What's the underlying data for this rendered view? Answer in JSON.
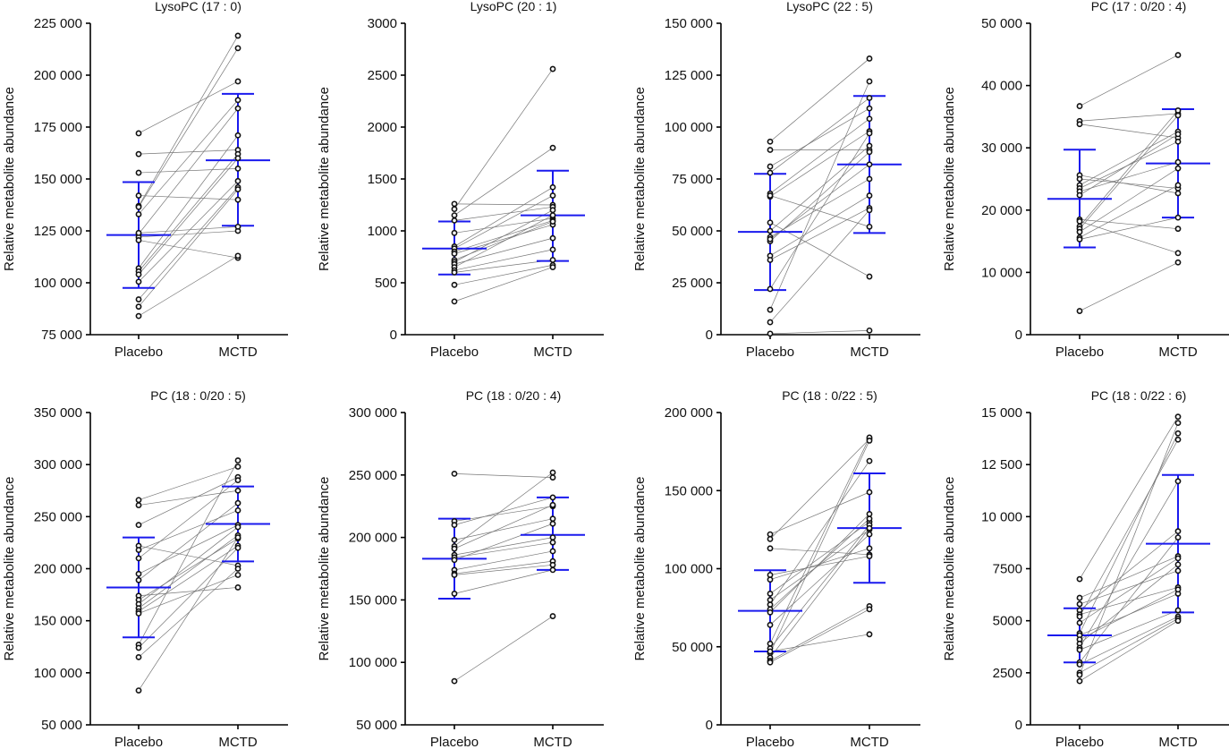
{
  "chart_data": [
    {
      "type": "scatter",
      "title": "LysoPC (17 : 0)",
      "xlabel": "",
      "ylabel": "Relative metabolite abundance",
      "categories": [
        "Placebo",
        "MCTD"
      ],
      "ylim": [
        75000,
        225000
      ],
      "yticks": [
        75000,
        100000,
        125000,
        150000,
        175000,
        200000,
        225000
      ],
      "ytick_labels": [
        "75 000",
        "100 000",
        "125 000",
        "150 000",
        "175 000",
        "200 000",
        "225 000"
      ],
      "pairs": [
        [
          172000,
          197000
        ],
        [
          162000,
          164000
        ],
        [
          153000,
          155000
        ],
        [
          142000,
          140000
        ],
        [
          137000,
          219000
        ],
        [
          136500,
          213000
        ],
        [
          133000,
          188000
        ],
        [
          123500,
          184000
        ],
        [
          122000,
          125000
        ],
        [
          120500,
          112000
        ],
        [
          107000,
          171000
        ],
        [
          105500,
          162000
        ],
        [
          104000,
          160000
        ],
        [
          100500,
          149000
        ],
        [
          92000,
          146000
        ],
        [
          88500,
          145000
        ],
        [
          84000,
          113000
        ],
        [
          124000,
          127000
        ]
      ],
      "summary": {
        "Placebo": {
          "mean": 123000,
          "upper": 148500,
          "lower": 97500
        },
        "MCTD": {
          "mean": 159000,
          "upper": 191000,
          "lower": 127500
        }
      }
    },
    {
      "type": "scatter",
      "title": "LysoPC (20 : 1)",
      "xlabel": "",
      "ylabel": "Relative metabolite abundance",
      "categories": [
        "Placebo",
        "MCTD"
      ],
      "ylim": [
        0,
        3000
      ],
      "yticks": [
        0,
        500,
        1000,
        1500,
        2000,
        2500,
        3000
      ],
      "ytick_labels": [
        "0",
        "500",
        "1000",
        "1500",
        "2000",
        "2500",
        "3000"
      ],
      "pairs": [
        [
          1260,
          1250
        ],
        [
          1210,
          2560
        ],
        [
          1150,
          1800
        ],
        [
          1100,
          1230
        ],
        [
          980,
          1120
        ],
        [
          850,
          1420
        ],
        [
          830,
          1340
        ],
        [
          800,
          1100
        ],
        [
          780,
          1060
        ],
        [
          720,
          1090
        ],
        [
          700,
          1200
        ],
        [
          680,
          930
        ],
        [
          650,
          1150
        ],
        [
          620,
          820
        ],
        [
          600,
          720
        ],
        [
          480,
          670
        ],
        [
          320,
          650
        ]
      ],
      "summary": {
        "Placebo": {
          "mean": 830,
          "upper": 1090,
          "lower": 580
        },
        "MCTD": {
          "mean": 1150,
          "upper": 1580,
          "lower": 710
        }
      }
    },
    {
      "type": "scatter",
      "title": "LysoPC (22 : 5)",
      "xlabel": "",
      "ylabel": "Relative metabolite abundance",
      "categories": [
        "Placebo",
        "MCTD"
      ],
      "ylim": [
        0,
        150000
      ],
      "yticks": [
        0,
        25000,
        50000,
        75000,
        100000,
        125000,
        150000
      ],
      "ytick_labels": [
        "0",
        "25 000",
        "50 000",
        "75 000",
        "100 000",
        "125 000",
        "150 000"
      ],
      "pairs": [
        [
          93000,
          133000
        ],
        [
          89000,
          89000
        ],
        [
          81000,
          109000
        ],
        [
          78000,
          114000
        ],
        [
          68000,
          104000
        ],
        [
          66500,
          98000
        ],
        [
          54000,
          28000
        ],
        [
          50000,
          91000
        ],
        [
          47000,
          75000
        ],
        [
          45000,
          88000
        ],
        [
          38000,
          67000
        ],
        [
          36000,
          61000
        ],
        [
          22000,
          97000
        ],
        [
          12000,
          122000
        ],
        [
          6000,
          60000
        ],
        [
          500,
          2000
        ],
        [
          67000,
          52000
        ],
        [
          46000,
          82000
        ]
      ],
      "summary": {
        "Placebo": {
          "mean": 49500,
          "upper": 77500,
          "lower": 21500
        },
        "MCTD": {
          "mean": 82000,
          "upper": 115000,
          "lower": 49000
        }
      }
    },
    {
      "type": "scatter",
      "title": "PC (17 : 0/20 : 4)",
      "xlabel": "",
      "ylabel": "Relative metabolite abundance",
      "categories": [
        "Placebo",
        "MCTD"
      ],
      "ylim": [
        0,
        50000
      ],
      "yticks": [
        0,
        10000,
        20000,
        30000,
        40000,
        50000
      ],
      "ytick_labels": [
        "0",
        "10 000",
        "20 000",
        "30 000",
        "40 000",
        "50 000"
      ],
      "pairs": [
        [
          36700,
          44900
        ],
        [
          34300,
          35500
        ],
        [
          33800,
          31600
        ],
        [
          25600,
          22700
        ],
        [
          25000,
          23500
        ],
        [
          24000,
          32600
        ],
        [
          23500,
          31000
        ],
        [
          23000,
          27700
        ],
        [
          22400,
          32200
        ],
        [
          18500,
          17000
        ],
        [
          18200,
          13100
        ],
        [
          17400,
          36000
        ],
        [
          17000,
          35200
        ],
        [
          16500,
          26700
        ],
        [
          15600,
          24000
        ],
        [
          15300,
          18800
        ],
        [
          3800,
          11600
        ]
      ],
      "summary": {
        "Placebo": {
          "mean": 21800,
          "upper": 29700,
          "lower": 14000
        },
        "MCTD": {
          "mean": 27500,
          "upper": 36200,
          "lower": 18800
        }
      }
    },
    {
      "type": "scatter",
      "title": "PC (18 : 0/20 : 5)",
      "xlabel": "",
      "ylabel": "Relative metabolite abundance",
      "categories": [
        "Placebo",
        "MCTD"
      ],
      "ylim": [
        50000,
        350000
      ],
      "yticks": [
        50000,
        100000,
        150000,
        200000,
        250000,
        300000,
        350000
      ],
      "ytick_labels": [
        "50 000",
        "100 000",
        "150 000",
        "200 000",
        "250 000",
        "300 000",
        "350 000"
      ],
      "pairs": [
        [
          266000,
          298000
        ],
        [
          261000,
          275000
        ],
        [
          242000,
          288000
        ],
        [
          222000,
          203000
        ],
        [
          218000,
          256000
        ],
        [
          210000,
          285000
        ],
        [
          195000,
          242000
        ],
        [
          189000,
          263000
        ],
        [
          174000,
          182000
        ],
        [
          170000,
          229000
        ],
        [
          166000,
          240000
        ],
        [
          162000,
          232000
        ],
        [
          159000,
          222000
        ],
        [
          157000,
          194000
        ],
        [
          127000,
          304000
        ],
        [
          124000,
          220000
        ],
        [
          115000,
          200000
        ],
        [
          83000,
          230000
        ]
      ],
      "summary": {
        "Placebo": {
          "mean": 182000,
          "upper": 230000,
          "lower": 134000
        },
        "MCTD": {
          "mean": 243000,
          "upper": 279000,
          "lower": 207000
        }
      }
    },
    {
      "type": "scatter",
      "title": "PC (18 : 0/20 : 4)",
      "xlabel": "",
      "ylabel": "Relative metabolite abundance",
      "categories": [
        "Placebo",
        "MCTD"
      ],
      "ylim": [
        50000,
        300000
      ],
      "yticks": [
        50000,
        100000,
        150000,
        200000,
        250000,
        300000
      ],
      "ytick_labels": [
        "50 000",
        "100 000",
        "150 000",
        "200 000",
        "250 000",
        "300 000"
      ],
      "pairs": [
        [
          251000,
          248000
        ],
        [
          213000,
          225000
        ],
        [
          210000,
          232000
        ],
        [
          198000,
          215000
        ],
        [
          193000,
          252000
        ],
        [
          191000,
          226000
        ],
        [
          186000,
          200000
        ],
        [
          184000,
          196000
        ],
        [
          182000,
          211000
        ],
        [
          174000,
          189000
        ],
        [
          171000,
          181000
        ],
        [
          170000,
          178000
        ],
        [
          155000,
          174000
        ],
        [
          85000,
          137000
        ]
      ],
      "summary": {
        "Placebo": {
          "mean": 183000,
          "upper": 215000,
          "lower": 151000
        },
        "MCTD": {
          "mean": 202000,
          "upper": 232000,
          "lower": 174000
        }
      }
    },
    {
      "type": "scatter",
      "title": "PC (18 : 0/22 : 5)",
      "xlabel": "",
      "ylabel": "Relative metabolite abundance",
      "categories": [
        "Placebo",
        "MCTD"
      ],
      "ylim": [
        0,
        200000
      ],
      "yticks": [
        0,
        50000,
        100000,
        150000,
        200000
      ],
      "ytick_labels": [
        "0",
        "50 000",
        "100 000",
        "150 000",
        "200 000"
      ],
      "pairs": [
        [
          122000,
          149000
        ],
        [
          119000,
          183000
        ],
        [
          113000,
          109000
        ],
        [
          96000,
          108000
        ],
        [
          93000,
          113000
        ],
        [
          84000,
          130000
        ],
        [
          80000,
          125000
        ],
        [
          77000,
          169000
        ],
        [
          74000,
          132000
        ],
        [
          72000,
          135000
        ],
        [
          64000,
          122000
        ],
        [
          52000,
          184000
        ],
        [
          49000,
          128000
        ],
        [
          46000,
          182000
        ],
        [
          43000,
          126000
        ],
        [
          41000,
          76000
        ],
        [
          40000,
          74000
        ],
        [
          47000,
          58000
        ]
      ],
      "summary": {
        "Placebo": {
          "mean": 73000,
          "upper": 99000,
          "lower": 47000
        },
        "MCTD": {
          "mean": 126000,
          "upper": 161000,
          "lower": 91000
        }
      }
    },
    {
      "type": "scatter",
      "title": "PC (18 : 0/22 : 6)",
      "xlabel": "",
      "ylabel": "Relative metabolite abundance",
      "categories": [
        "Placebo",
        "MCTD"
      ],
      "ylim": [
        0,
        15000
      ],
      "yticks": [
        0,
        2500,
        5000,
        7500,
        10000,
        12500,
        15000
      ],
      "ytick_labels": [
        "0",
        "2500",
        "5000",
        "7500",
        "10 000",
        "12 500",
        "15 000"
      ],
      "pairs": [
        [
          7000,
          14800
        ],
        [
          6100,
          8100
        ],
        [
          5800,
          7400
        ],
        [
          5500,
          9300
        ],
        [
          5300,
          6600
        ],
        [
          5200,
          13700
        ],
        [
          4900,
          8000
        ],
        [
          4400,
          14000
        ],
        [
          4300,
          6300
        ],
        [
          4100,
          6500
        ],
        [
          3900,
          7700
        ],
        [
          3700,
          11700
        ],
        [
          3600,
          5500
        ],
        [
          3000,
          9000
        ],
        [
          2900,
          5200
        ],
        [
          2500,
          5100
        ],
        [
          2400,
          14500
        ],
        [
          2100,
          5000
        ]
      ],
      "summary": {
        "Placebo": {
          "mean": 4300,
          "upper": 5600,
          "lower": 3000
        },
        "MCTD": {
          "mean": 8700,
          "upper": 12000,
          "lower": 5400
        }
      }
    }
  ]
}
